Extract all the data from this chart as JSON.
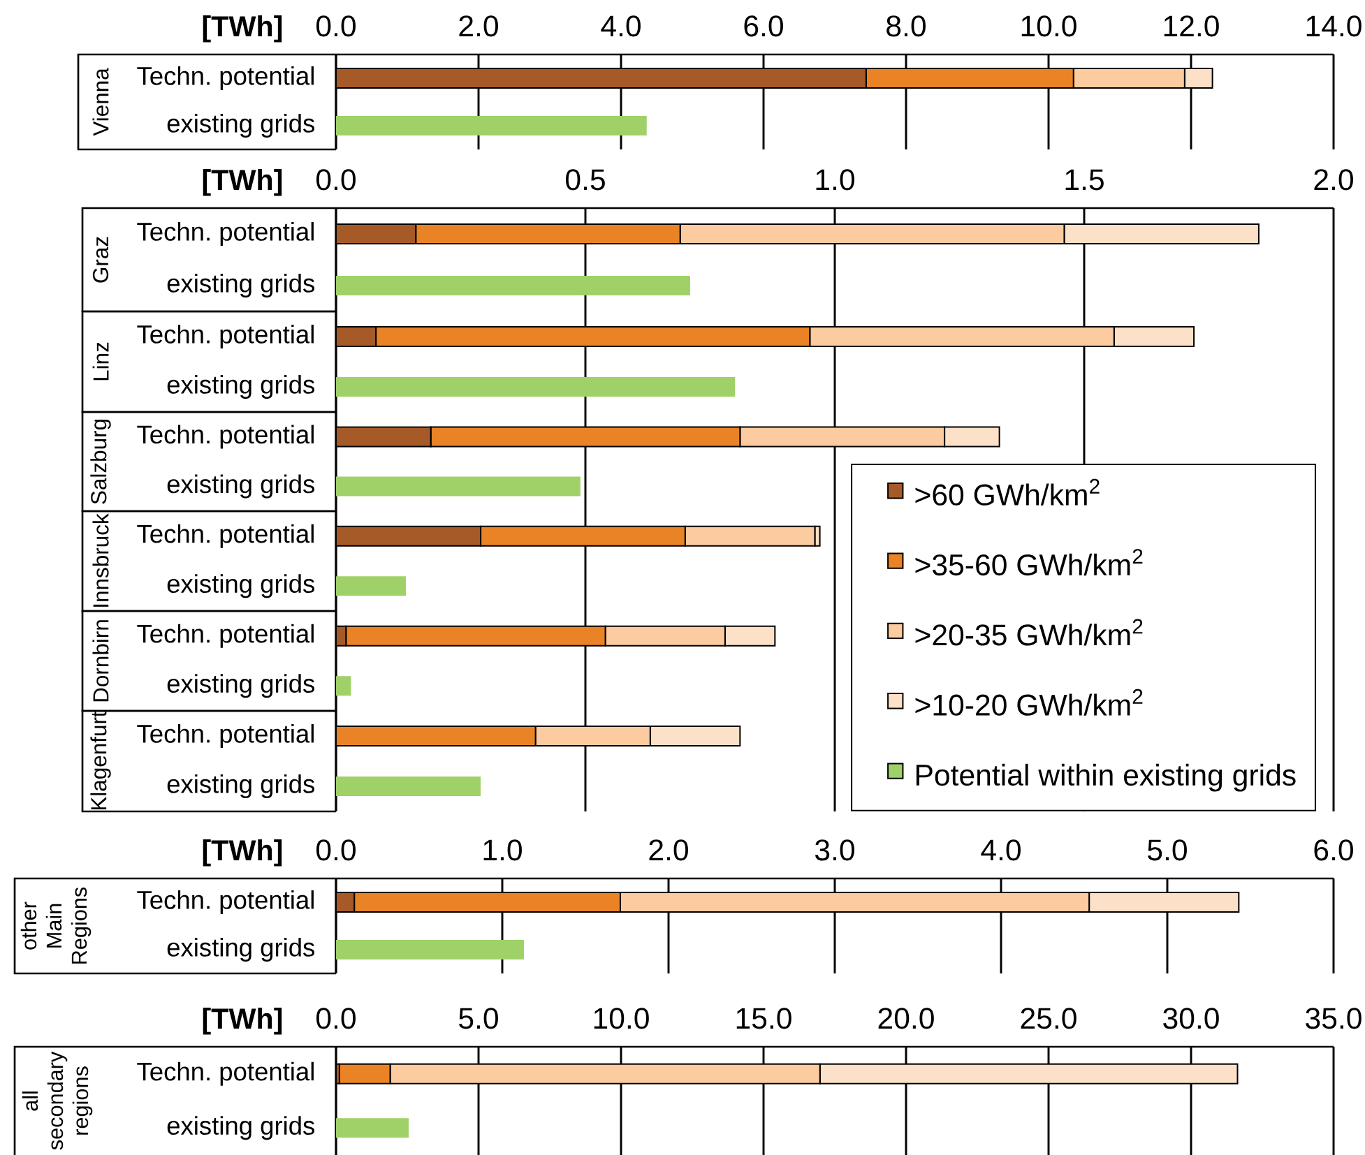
{
  "chart_data": [
    {
      "type": "bar",
      "orientation": "horizontal",
      "stacked": true,
      "xlabel": "[TWh]",
      "ylabel": "Vienna",
      "categories": [
        "Techn. potential",
        "existing grids"
      ],
      "series": [
        {
          "color": "#a65a28",
          "values": [
            7.44,
            null
          ]
        },
        {
          "color": "#e98325",
          "values": [
            2.91,
            null
          ]
        },
        {
          "color": "#fccba0",
          "values": [
            1.56,
            null
          ]
        },
        {
          "color": "#fde0c8",
          "values": [
            0.39,
            null
          ]
        },
        {
          "color": "#a0d168",
          "values": [
            null,
            4.36
          ]
        }
      ],
      "xlim": [
        0,
        14
      ],
      "xticks": [
        {
          "value": 0,
          "label": "0.0"
        },
        {
          "value": 2,
          "label": "2.0"
        },
        {
          "value": 4,
          "label": "4.0"
        },
        {
          "value": 6,
          "label": "6.0"
        },
        {
          "value": 8,
          "label": "8.0"
        },
        {
          "value": 10,
          "label": "10.0"
        },
        {
          "value": 12,
          "label": "12.0"
        },
        {
          "value": 14,
          "label": "14.0"
        }
      ],
      "grid": "x"
    },
    {
      "type": "bar",
      "orientation": "horizontal",
      "stacked": true,
      "xlabel": "[TWh]",
      "ylabel": "Graz",
      "categories": [
        "Techn. potential",
        "existing grids"
      ],
      "series": [
        {
          "color": "#a65a28",
          "values": [
            0.16,
            null
          ]
        },
        {
          "color": "#e98325",
          "values": [
            0.53,
            null
          ]
        },
        {
          "color": "#fccba0",
          "values": [
            0.77,
            null
          ]
        },
        {
          "color": "#fde0c8",
          "values": [
            0.39,
            null
          ]
        },
        {
          "color": "#a0d168",
          "values": [
            null,
            0.71
          ]
        }
      ],
      "xlim": [
        0,
        2
      ],
      "xticks": [
        {
          "value": 0,
          "label": "0.0"
        },
        {
          "value": 0.5,
          "label": "0.5"
        },
        {
          "value": 1,
          "label": "1.0"
        },
        {
          "value": 1.5,
          "label": "1.5"
        },
        {
          "value": 2,
          "label": "2.0"
        }
      ],
      "grid": "x"
    },
    {
      "type": "bar",
      "orientation": "horizontal",
      "stacked": true,
      "ylabel": "Linz",
      "categories": [
        "Techn. potential",
        "existing grids"
      ],
      "series": [
        {
          "color": "#a65a28",
          "values": [
            0.08,
            null
          ]
        },
        {
          "color": "#e98325",
          "values": [
            0.87,
            null
          ]
        },
        {
          "color": "#fccba0",
          "values": [
            0.61,
            null
          ]
        },
        {
          "color": "#fde0c8",
          "values": [
            0.16,
            null
          ]
        },
        {
          "color": "#a0d168",
          "values": [
            null,
            0.8
          ]
        }
      ],
      "xlim": [
        0,
        2
      ],
      "xticks": [
        {
          "value": 0,
          "label": null
        },
        {
          "value": 0.5,
          "label": null
        },
        {
          "value": 1,
          "label": null
        },
        {
          "value": 1.5,
          "label": null
        },
        {
          "value": 2,
          "label": null
        }
      ],
      "tick_labels": "y",
      "grid": "x"
    },
    {
      "type": "bar",
      "orientation": "horizontal",
      "stacked": true,
      "ylabel": "Salzburg",
      "categories": [
        "Techn. potential",
        "existing grids"
      ],
      "series": [
        {
          "color": "#a65a28",
          "values": [
            0.19,
            null
          ]
        },
        {
          "color": "#e98325",
          "values": [
            0.62,
            null
          ]
        },
        {
          "color": "#fccba0",
          "values": [
            0.41,
            null
          ]
        },
        {
          "color": "#fde0c8",
          "values": [
            0.11,
            null
          ]
        },
        {
          "color": "#a0d168",
          "values": [
            null,
            0.49
          ]
        }
      ],
      "xlim": [
        0,
        2
      ],
      "xticks": [
        {
          "value": 0,
          "label": null
        },
        {
          "value": 0.5,
          "label": null
        },
        {
          "value": 1,
          "label": null
        },
        {
          "value": 1.5,
          "label": null
        },
        {
          "value": 2,
          "label": null
        }
      ],
      "tick_labels": "y",
      "grid": "x"
    },
    {
      "type": "bar",
      "orientation": "horizontal",
      "stacked": true,
      "ylabel": "Innsbruck",
      "categories": [
        "Techn. potential",
        "existing grids"
      ],
      "series": [
        {
          "color": "#a65a28",
          "values": [
            0.29,
            null
          ]
        },
        {
          "color": "#e98325",
          "values": [
            0.41,
            null
          ]
        },
        {
          "color": "#fccba0",
          "values": [
            0.26,
            null
          ]
        },
        {
          "color": "#fde0c8",
          "values": [
            0.01,
            null
          ]
        },
        {
          "color": "#a0d168",
          "values": [
            null,
            0.14
          ]
        }
      ],
      "xlim": [
        0,
        2
      ],
      "xticks": [
        {
          "value": 0,
          "label": null
        },
        {
          "value": 0.5,
          "label": null
        },
        {
          "value": 1,
          "label": null
        },
        {
          "value": 1.5,
          "label": null
        },
        {
          "value": 2,
          "label": null
        }
      ],
      "tick_labels": "y",
      "grid": "x"
    },
    {
      "type": "bar",
      "orientation": "horizontal",
      "stacked": true,
      "ylabel": "Dornbirn",
      "categories": [
        "Techn. potential",
        "existing grids"
      ],
      "series": [
        {
          "name": ">60 GWh/km$^{2}$",
          "color": "#a65a28",
          "values": [
            0.02,
            null
          ]
        },
        {
          "name": ">35-60 GWh/km$^{2}$",
          "color": "#e98325",
          "values": [
            0.52,
            null
          ]
        },
        {
          "name": ">20-35 GWh/km$^{2}$",
          "color": "#fccba0",
          "values": [
            0.24,
            null
          ]
        },
        {
          "name": ">10-20 GWh/km$^{2}$",
          "color": "#fde0c8",
          "values": [
            0.1,
            null
          ]
        },
        {
          "name": "Potential within existing grids",
          "color": "#a0d168",
          "values": [
            null,
            0.03
          ]
        }
      ],
      "xlim": [
        0,
        2
      ],
      "xticks": [
        {
          "value": 0,
          "label": null
        },
        {
          "value": 0.5,
          "label": null
        },
        {
          "value": 1,
          "label": null
        },
        {
          "value": 1.5,
          "label": null
        },
        {
          "value": 2,
          "label": null
        }
      ],
      "tick_labels": "y",
      "grid": "x",
      "legend": "right"
    },
    {
      "type": "bar",
      "orientation": "horizontal",
      "stacked": true,
      "ylabel": "Klagenfurt",
      "categories": [
        "Techn. potential",
        "existing grids"
      ],
      "series": [
        {
          "color": "#a65a28",
          "values": [
            null,
            null
          ]
        },
        {
          "color": "#e98325",
          "values": [
            0.4,
            null
          ]
        },
        {
          "color": "#fccba0",
          "values": [
            0.23,
            null
          ]
        },
        {
          "color": "#fde0c8",
          "values": [
            0.18,
            null
          ]
        },
        {
          "color": "#a0d168",
          "values": [
            null,
            0.29
          ]
        }
      ],
      "xlim": [
        0,
        2
      ],
      "xticks": [
        {
          "value": 0,
          "label": null
        },
        {
          "value": 0.5,
          "label": null
        },
        {
          "value": 1,
          "label": null
        },
        {
          "value": 1.5,
          "label": null
        },
        {
          "value": 2,
          "label": null
        }
      ],
      "tick_labels": "y",
      "grid": "x"
    },
    {
      "type": "bar",
      "orientation": "horizontal",
      "stacked": true,
      "xlabel": "[TWh]",
      "ylabel": "other Main Regions",
      "categories": [
        "Techn. potential",
        "existing grids"
      ],
      "series": [
        {
          "color": "#a65a28",
          "values": [
            0.11,
            null
          ]
        },
        {
          "color": "#e98325",
          "values": [
            1.6,
            null
          ]
        },
        {
          "color": "#fccba0",
          "values": [
            2.82,
            null
          ]
        },
        {
          "color": "#fde0c8",
          "values": [
            0.9,
            null
          ]
        },
        {
          "color": "#a0d168",
          "values": [
            null,
            1.13
          ]
        }
      ],
      "xlim": [
        0,
        6
      ],
      "xticks": [
        {
          "value": 0,
          "label": "0.0"
        },
        {
          "value": 1,
          "label": "1.0"
        },
        {
          "value": 2,
          "label": "2.0"
        },
        {
          "value": 3,
          "label": "3.0"
        },
        {
          "value": 4,
          "label": "4.0"
        },
        {
          "value": 5,
          "label": "5.0"
        },
        {
          "value": 6,
          "label": "6.0"
        }
      ],
      "grid": "x"
    },
    {
      "type": "bar",
      "orientation": "horizontal",
      "stacked": true,
      "xlabel": "[TWh]",
      "ylabel": "all secondary regions",
      "categories": [
        "Techn. potential",
        "existing grids"
      ],
      "series": [
        {
          "color": "#a65a28",
          "values": [
            0.12,
            null
          ]
        },
        {
          "color": "#e98325",
          "values": [
            1.78,
            null
          ]
        },
        {
          "color": "#fccba0",
          "values": [
            15.08,
            null
          ]
        },
        {
          "color": "#fde0c8",
          "values": [
            14.65,
            null
          ]
        },
        {
          "color": "#a0d168",
          "values": [
            null,
            2.55
          ]
        }
      ],
      "xlim": [
        0,
        35
      ],
      "xticks": [
        {
          "value": 0,
          "label": "0.0"
        },
        {
          "value": 5,
          "label": "5.0"
        },
        {
          "value": 10,
          "label": "10.0"
        },
        {
          "value": 15,
          "label": "15.0"
        },
        {
          "value": 20,
          "label": "20.0"
        },
        {
          "value": 25,
          "label": "25.0"
        },
        {
          "value": 30,
          "label": "30.0"
        },
        {
          "value": 35,
          "label": "35.0"
        }
      ],
      "grid": "x"
    }
  ]
}
